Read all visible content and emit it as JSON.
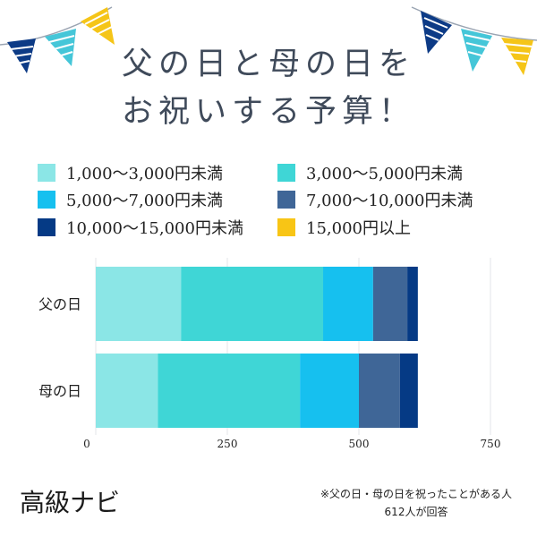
{
  "title": {
    "line1": "父の日と母の日を",
    "line2": "お祝いする予算！"
  },
  "colors": {
    "bunting_navy": "#0d3b86",
    "bunting_cyan": "#45c6d8",
    "bunting_yellow": "#f5c518",
    "string": "#9aa4b2"
  },
  "chart_data": {
    "type": "bar",
    "orientation": "horizontal",
    "stacked": true,
    "categories": [
      "父の日",
      "母の日"
    ],
    "series": [
      {
        "name": "1,000〜3,000円未満",
        "color": "#8be6e6",
        "values": [
          162,
          118
        ]
      },
      {
        "name": "3,000〜5,000円未満",
        "color": "#3fd6d6",
        "values": [
          270,
          270
        ]
      },
      {
        "name": "5,000〜7,000円未満",
        "color": "#16c0ef",
        "values": [
          95,
          112
        ]
      },
      {
        "name": "7,000〜10,000円未満",
        "color": "#3f6697",
        "values": [
          65,
          78
        ]
      },
      {
        "name": "10,000〜15,000円未満",
        "color": "#053a85",
        "values": [
          20,
          34
        ]
      },
      {
        "name": "15,000円以上",
        "color": "#f8c515",
        "values": [
          0,
          0
        ]
      }
    ],
    "x_ticks": [
      0,
      250,
      500,
      750
    ],
    "xlim": [
      0,
      750
    ],
    "grid": true,
    "legend_position": "top"
  },
  "brand": "高級ナビ",
  "note": {
    "line1": "※父の日・母の日を祝ったことがある人",
    "line2": "612人が回答"
  }
}
